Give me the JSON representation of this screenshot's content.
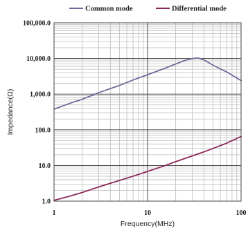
{
  "chart_data": {
    "type": "line",
    "title": "",
    "xlabel": "Frequency(MHz)",
    "ylabel": "Impedance(Ω)",
    "x_scale": "log",
    "y_scale": "log",
    "xlim": [
      1,
      100
    ],
    "ylim": [
      1,
      100000
    ],
    "grid": true,
    "legend_position": "top",
    "x_ticks": [
      {
        "value": 1,
        "label": "1"
      },
      {
        "value": 10,
        "label": "10"
      },
      {
        "value": 100,
        "label": "100"
      }
    ],
    "y_ticks": [
      {
        "value": 1,
        "label": "1.0"
      },
      {
        "value": 10,
        "label": "10.0"
      },
      {
        "value": 100,
        "label": "100.0"
      },
      {
        "value": 1000,
        "label": "1,000.0"
      },
      {
        "value": 10000,
        "label": "10,000.0"
      },
      {
        "value": 100000,
        "label": "100,000.0"
      }
    ],
    "series": [
      {
        "name": "Common mode",
        "color": "#6b6b9a",
        "points": [
          [
            1,
            380
          ],
          [
            1.5,
            560
          ],
          [
            2,
            720
          ],
          [
            3,
            1100
          ],
          [
            5,
            1750
          ],
          [
            7,
            2500
          ],
          [
            10,
            3500
          ],
          [
            15,
            5200
          ],
          [
            20,
            7000
          ],
          [
            25,
            8800
          ],
          [
            30,
            10000
          ],
          [
            35,
            10300
          ],
          [
            40,
            9200
          ],
          [
            50,
            6500
          ],
          [
            70,
            4200
          ],
          [
            100,
            2400
          ]
        ]
      },
      {
        "name": "Differential mode",
        "color": "#8b2a5a",
        "points": [
          [
            1,
            1.05
          ],
          [
            1.5,
            1.4
          ],
          [
            2,
            1.75
          ],
          [
            3,
            2.5
          ],
          [
            5,
            3.8
          ],
          [
            7,
            5.0
          ],
          [
            10,
            6.8
          ],
          [
            15,
            9.7
          ],
          [
            20,
            12.8
          ],
          [
            30,
            18.5
          ],
          [
            40,
            24
          ],
          [
            50,
            30
          ],
          [
            70,
            42
          ],
          [
            100,
            65
          ]
        ]
      }
    ]
  }
}
